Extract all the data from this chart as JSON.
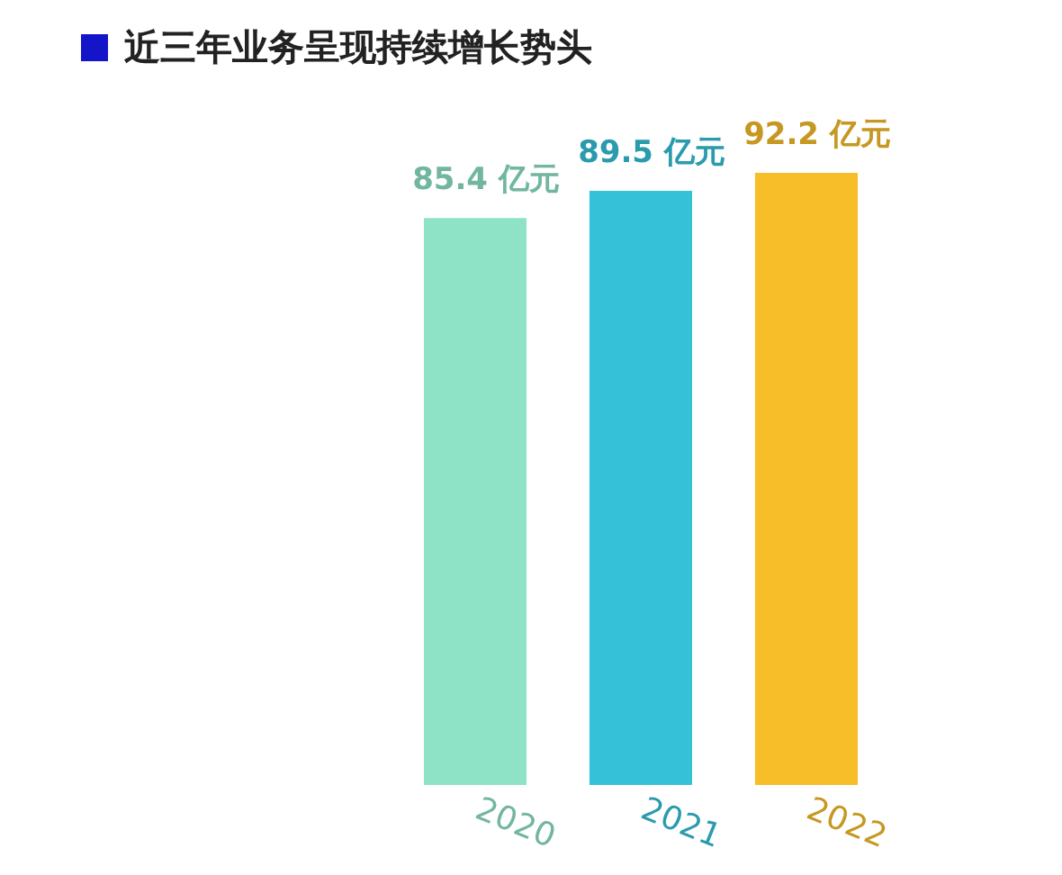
{
  "chart_data": {
    "type": "bar",
    "title": "近三年业务呈现持续增长势头",
    "categories": [
      "2020",
      "2021",
      "2022"
    ],
    "values": [
      85.4,
      89.5,
      92.2
    ],
    "colors": [
      "#8ee3c6",
      "#35c2d8",
      "#f7be2a"
    ],
    "value_labels": [
      "85.4 亿元",
      "89.5 亿元",
      "92.2 亿元"
    ]
  }
}
